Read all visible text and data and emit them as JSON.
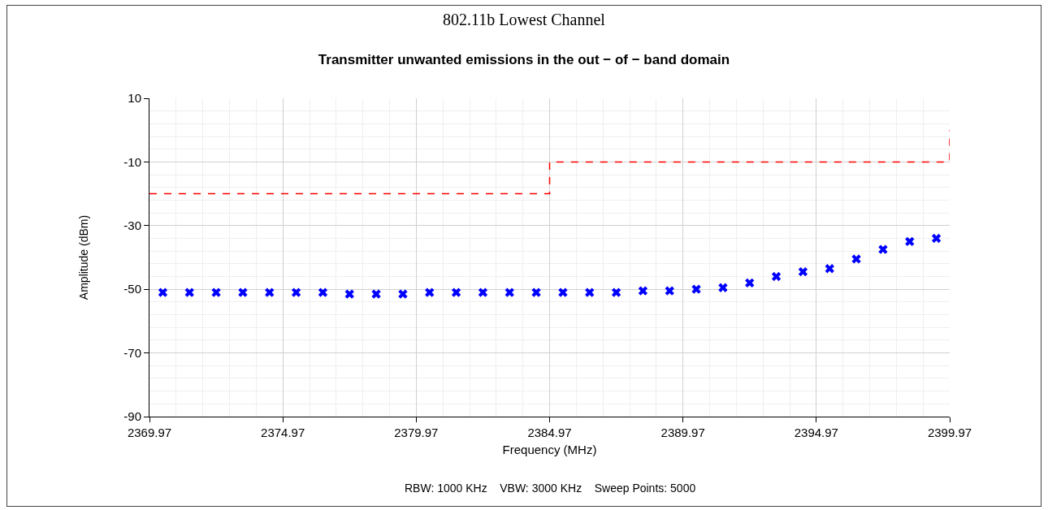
{
  "chart_data": {
    "type": "scatter",
    "title": "802.11b Lowest Channel",
    "subtitle": "Transmitter unwanted emissions in the out − of − band domain",
    "xlabel": "Frequency (MHz)",
    "ylabel": "Amplitude (dBm)",
    "annotations": [
      "RBW: 1000 KHz    VBW: 3000 KHz    Sweep Points: 5000"
    ],
    "series": [
      {
        "color": "#0000ff",
        "marker": "cross",
        "x": [
          2370.47,
          2371.47,
          2372.47,
          2373.47,
          2374.47,
          2375.47,
          2376.47,
          2377.47,
          2378.47,
          2379.47,
          2380.47,
          2381.47,
          2382.47,
          2383.47,
          2384.47,
          2385.47,
          2386.47,
          2387.47,
          2388.47,
          2389.47,
          2390.47,
          2391.47,
          2392.47,
          2393.47,
          2394.47,
          2395.47,
          2396.47,
          2397.47,
          2398.47,
          2399.47
        ],
        "values": [
          -51,
          -51,
          -51,
          -51,
          -51,
          -51,
          -51,
          -51.5,
          -51.5,
          -51.5,
          -51,
          -51,
          -51,
          -51,
          -51,
          -51,
          -51,
          -51,
          -50.5,
          -50.5,
          -50,
          -49.5,
          -48,
          -46,
          -44.5,
          -43.5,
          -40.5,
          -37.5,
          -35,
          -34
        ]
      },
      {
        "type": "line",
        "color": "#ff0000",
        "line_style": "dashed",
        "marker": "none",
        "x": [
          2369.97,
          2384.97,
          2384.97,
          2399.97,
          2399.97
        ],
        "values": [
          -20,
          -20,
          -10,
          -10,
          0
        ]
      }
    ],
    "xlim": [
      2369.97,
      2399.97
    ],
    "xticks": [
      2369.97,
      2374.97,
      2379.97,
      2384.97,
      2389.97,
      2394.97,
      2399.97
    ],
    "ylim": [
      -90,
      10
    ],
    "yticks": [
      -90,
      -70,
      -50,
      -30,
      -10,
      10
    ],
    "grid": true
  }
}
